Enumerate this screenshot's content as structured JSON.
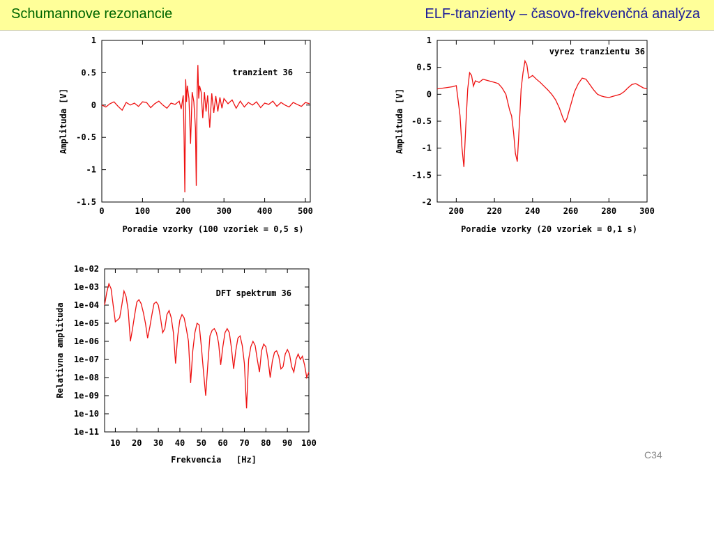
{
  "header": {
    "title_left": "Schumannove rezonancie",
    "title_right": "ELF-tranzienty – časovo-frekvenčná analýza"
  },
  "slide_number": "C34",
  "colors": {
    "header_bg": "#ffff99",
    "title_left": "#006600",
    "title_right": "#1a1a99",
    "series": "#ee1111"
  },
  "chart_data": [
    {
      "type": "line",
      "annotation": "tranzient 36",
      "xlabel": "Poradie vzorky (100 vzoriek = 0,5 s)",
      "ylabel": "Amplituda [V]",
      "xlim": [
        0,
        512
      ],
      "ylim": [
        -1.5,
        1
      ],
      "xticks": [
        0,
        100,
        200,
        300,
        400,
        500
      ],
      "yticks": [
        1,
        0.5,
        0,
        -0.5,
        -1,
        -1.5
      ],
      "xtick_labels": [
        "0",
        "100",
        "200",
        "300",
        "400",
        "500"
      ],
      "ytick_labels": [
        "1",
        "0.5",
        "0",
        "-0.5",
        "-1",
        "-1.5"
      ],
      "x": [
        0,
        10,
        20,
        30,
        40,
        50,
        60,
        70,
        80,
        90,
        100,
        110,
        120,
        130,
        140,
        150,
        160,
        170,
        180,
        190,
        195,
        200,
        202,
        204,
        206,
        208,
        210,
        214,
        218,
        222,
        226,
        230,
        232,
        234,
        236,
        238,
        240,
        244,
        248,
        252,
        256,
        260,
        265,
        270,
        275,
        280,
        285,
        290,
        295,
        300,
        310,
        320,
        330,
        340,
        350,
        360,
        370,
        380,
        390,
        400,
        410,
        420,
        430,
        440,
        450,
        460,
        470,
        480,
        490,
        500,
        510
      ],
      "y": [
        0.0,
        -0.03,
        0.02,
        0.05,
        -0.02,
        -0.08,
        0.04,
        0.0,
        0.03,
        -0.02,
        0.05,
        0.04,
        -0.04,
        0.02,
        0.06,
        0.0,
        -0.05,
        0.03,
        0.01,
        0.06,
        -0.06,
        0.15,
        -0.5,
        -1.35,
        0.4,
        0.05,
        0.3,
        0.1,
        -0.6,
        0.2,
        0.05,
        -0.35,
        -1.25,
        0.2,
        0.62,
        0.1,
        0.3,
        0.2,
        -0.2,
        0.2,
        -0.1,
        0.15,
        -0.35,
        0.18,
        -0.12,
        0.14,
        -0.1,
        0.12,
        -0.05,
        0.1,
        0.02,
        0.08,
        -0.05,
        0.06,
        -0.03,
        0.04,
        0.0,
        0.05,
        -0.04,
        0.03,
        0.01,
        0.06,
        -0.02,
        0.04,
        0.0,
        -0.03,
        0.04,
        0.01,
        -0.02,
        0.04,
        0.02
      ]
    },
    {
      "type": "line",
      "annotation": "vyrez tranzientu 36",
      "xlabel": "Poradie vzorky (20 vzoriek = 0,1 s)",
      "ylabel": "Amplituda [V]",
      "xlim": [
        190,
        300
      ],
      "ylim": [
        -2,
        1
      ],
      "xticks": [
        200,
        220,
        240,
        260,
        280,
        300
      ],
      "yticks": [
        1,
        0.5,
        0,
        -0.5,
        -1,
        -1.5,
        -2
      ],
      "xtick_labels": [
        "200",
        "220",
        "240",
        "260",
        "280",
        "300"
      ],
      "ytick_labels": [
        "1",
        "0.5",
        "0",
        "-0.5",
        "-1",
        "-1.5",
        "-2"
      ],
      "x": [
        190,
        194,
        198,
        200,
        202,
        203,
        204,
        205,
        206,
        207,
        208,
        209,
        210,
        212,
        214,
        216,
        218,
        220,
        222,
        224,
        226,
        228,
        229,
        230,
        231,
        232,
        233,
        234,
        235,
        236,
        237,
        238,
        240,
        242,
        244,
        246,
        248,
        250,
        252,
        254,
        256,
        257,
        258,
        260,
        262,
        264,
        266,
        268,
        270,
        272,
        274,
        276,
        278,
        280,
        282,
        284,
        286,
        288,
        290,
        292,
        294,
        296,
        298,
        300
      ],
      "y": [
        0.1,
        0.12,
        0.14,
        0.16,
        -0.4,
        -1.0,
        -1.35,
        -0.6,
        0.1,
        0.4,
        0.35,
        0.15,
        0.25,
        0.22,
        0.28,
        0.26,
        0.24,
        0.22,
        0.2,
        0.12,
        0.0,
        -0.3,
        -0.4,
        -0.7,
        -1.1,
        -1.25,
        -0.6,
        0.1,
        0.4,
        0.62,
        0.55,
        0.3,
        0.35,
        0.28,
        0.22,
        0.15,
        0.08,
        0.0,
        -0.1,
        -0.25,
        -0.45,
        -0.52,
        -0.45,
        -0.2,
        0.05,
        0.2,
        0.3,
        0.28,
        0.18,
        0.08,
        0.0,
        -0.03,
        -0.05,
        -0.06,
        -0.04,
        -0.02,
        0.0,
        0.05,
        0.12,
        0.18,
        0.2,
        0.16,
        0.12,
        0.1
      ]
    },
    {
      "type": "line",
      "annotation": "DFT spektrum 36",
      "xlabel": "Frekvencia   [Hz]",
      "ylabel": "Relativna amplituda",
      "yscale": "log",
      "xlim": [
        5,
        100
      ],
      "ylim": [
        1e-11,
        0.01
      ],
      "xticks": [
        10,
        20,
        30,
        40,
        50,
        60,
        70,
        80,
        90,
        100
      ],
      "yticks": [
        0.01,
        0.001,
        0.0001,
        1e-05,
        1e-06,
        1e-07,
        1e-08,
        1e-09,
        1e-10,
        1e-11
      ],
      "xtick_labels": [
        "10",
        "20",
        "30",
        "40",
        "50",
        "60",
        "70",
        "80",
        "90",
        "100"
      ],
      "ytick_labels": [
        "1e-02",
        "1e-03",
        "1e-04",
        "1e-05",
        "1e-06",
        "1e-07",
        "1e-08",
        "1e-09",
        "1e-10",
        "1e-11"
      ],
      "x": [
        5,
        6,
        7,
        8,
        9,
        10,
        11,
        12,
        13,
        14,
        15,
        16,
        17,
        18,
        19,
        20,
        21,
        22,
        23,
        24,
        25,
        26,
        27,
        28,
        29,
        30,
        31,
        32,
        33,
        34,
        35,
        36,
        37,
        38,
        39,
        40,
        41,
        42,
        43,
        44,
        45,
        46,
        47,
        48,
        49,
        50,
        51,
        52,
        53,
        54,
        55,
        56,
        57,
        58,
        59,
        60,
        61,
        62,
        63,
        64,
        65,
        66,
        67,
        68,
        69,
        70,
        71,
        72,
        73,
        74,
        75,
        76,
        77,
        78,
        79,
        80,
        81,
        82,
        83,
        84,
        85,
        86,
        87,
        88,
        89,
        90,
        91,
        92,
        93,
        94,
        95,
        96,
        97,
        98,
        99,
        100
      ],
      "y": [
        0.0001,
        0.0005,
        0.0015,
        0.0008,
        0.0001,
        1.2e-05,
        1.5e-05,
        2e-05,
        0.0001,
        0.0006,
        0.0003,
        5e-05,
        1e-06,
        5e-06,
        3e-05,
        0.00015,
        0.0002,
        0.00012,
        4e-05,
        1e-05,
        1.5e-06,
        6e-06,
        3e-05,
        0.00012,
        0.00015,
        0.0001,
        2e-05,
        3e-06,
        5e-06,
        3e-05,
        5e-05,
        2e-05,
        3e-06,
        6e-08,
        2e-06,
        1.5e-05,
        3e-05,
        2e-05,
        5e-06,
        1e-06,
        5e-09,
        3e-07,
        3e-06,
        1e-05,
        8e-06,
        5e-07,
        2e-08,
        1e-09,
        5e-08,
        2e-06,
        4e-06,
        5e-06,
        3e-06,
        8e-07,
        5e-08,
        5e-07,
        3e-06,
        5e-06,
        3e-06,
        4e-07,
        3e-08,
        3e-07,
        1.5e-06,
        2e-06,
        6e-07,
        6e-08,
        2e-10,
        1e-07,
        5e-07,
        1e-06,
        6e-07,
        1e-07,
        2e-08,
        3e-07,
        7e-07,
        5e-07,
        1e-07,
        1e-08,
        8e-08,
        2.5e-07,
        3e-07,
        1.5e-07,
        3e-08,
        4e-08,
        2e-07,
        3.5e-07,
        2e-07,
        4e-08,
        2e-08,
        1e-07,
        2e-07,
        1e-07,
        1.5e-07,
        5e-08,
        1e-08,
        2e-08
      ]
    }
  ]
}
